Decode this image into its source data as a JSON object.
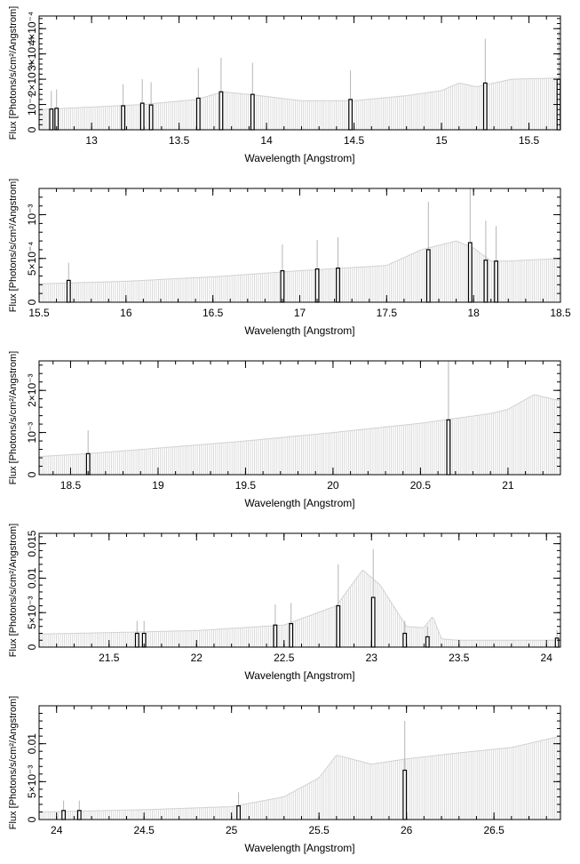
{
  "figure": {
    "colors": {
      "axis": "#000000",
      "continuum": "#d2d2d2",
      "line_marker": "#000000",
      "error_bar": "#b5b5b5",
      "background": "#ffffff"
    }
  },
  "chart_data": [
    {
      "type": "bar",
      "xlabel": "Wavelength [Angstrom]",
      "ylabel": "Flux [Photons/s/cm²/Angstrom]",
      "xlim": [
        12.7,
        15.68
      ],
      "ylim": [
        0,
        0.00045
      ],
      "xticks": [
        13,
        13.5,
        14,
        14.5,
        15,
        15.5
      ],
      "xtick_labels": [
        "13",
        "13.5",
        "14",
        "14.5",
        "15",
        "15.5"
      ],
      "yticks": [
        0,
        0.0001,
        0.0002,
        0.0003,
        0.0004
      ],
      "ytick_labels": [
        "0",
        "10⁻⁴",
        "2×10⁻⁴",
        "3×10⁻⁴",
        "4×10⁻⁴"
      ],
      "continuum": {
        "x": [
          12.7,
          13.0,
          13.3,
          13.6,
          13.75,
          13.9,
          14.2,
          14.5,
          14.8,
          15.0,
          15.1,
          15.2,
          15.4,
          15.68
        ],
        "y": [
          8e-05,
          9e-05,
          0.0001,
          0.00012,
          0.00015,
          0.00014,
          0.000115,
          0.000115,
          0.000135,
          0.000155,
          0.000185,
          0.00017,
          0.0002,
          0.000205
        ]
      },
      "lines": [
        {
          "x": 12.77,
          "y": 8.2e-05,
          "err": 7.2e-05
        },
        {
          "x": 12.8,
          "y": 8.5e-05,
          "err": 7.5e-05
        },
        {
          "x": 13.18,
          "y": 9.5e-05,
          "err": 8.5e-05
        },
        {
          "x": 13.29,
          "y": 0.000105,
          "err": 9.5e-05
        },
        {
          "x": 13.34,
          "y": 9.8e-05,
          "err": 9e-05
        },
        {
          "x": 13.61,
          "y": 0.000125,
          "err": 0.00012
        },
        {
          "x": 13.74,
          "y": 0.00015,
          "err": 0.000135
        },
        {
          "x": 13.92,
          "y": 0.00014,
          "err": 0.000125
        },
        {
          "x": 14.48,
          "y": 0.00012,
          "err": 0.000115
        },
        {
          "x": 15.25,
          "y": 0.000185,
          "err": 0.000175
        },
        {
          "x": 15.67,
          "y": 0.0002,
          "err": 0.00019
        }
      ]
    },
    {
      "type": "bar",
      "xlabel": "Wavelength [Angstrom]",
      "ylabel": "Flux [Photons/s/cm²/Angstrom]",
      "xlim": [
        15.5,
        18.5
      ],
      "ylim": [
        0,
        0.0013
      ],
      "xticks": [
        15.5,
        16,
        16.5,
        17,
        17.5,
        18,
        18.5
      ],
      "xtick_labels": [
        "15.5",
        "16",
        "16.5",
        "17",
        "17.5",
        "18",
        "18.5"
      ],
      "yticks": [
        0,
        0.0005,
        0.001
      ],
      "ytick_labels": [
        "0",
        "5×10⁻⁴",
        "10⁻³"
      ],
      "continuum": {
        "x": [
          15.5,
          16.0,
          16.5,
          17.0,
          17.5,
          17.7,
          17.9,
          18.0,
          18.1,
          18.2,
          18.5
        ],
        "y": [
          0.00021,
          0.00024,
          0.00029,
          0.00036,
          0.00042,
          0.0006,
          0.0007,
          0.00062,
          0.00047,
          0.00047,
          0.0005
        ]
      },
      "lines": [
        {
          "x": 15.67,
          "y": 0.00025,
          "err": 0.0002
        },
        {
          "x": 16.9,
          "y": 0.00036,
          "err": 0.0003
        },
        {
          "x": 17.1,
          "y": 0.00038,
          "err": 0.00033
        },
        {
          "x": 17.22,
          "y": 0.00039,
          "err": 0.00035
        },
        {
          "x": 17.74,
          "y": 0.0006,
          "err": 0.00055
        },
        {
          "x": 17.98,
          "y": 0.00068,
          "err": 0.00065
        },
        {
          "x": 18.07,
          "y": 0.00048,
          "err": 0.00045
        },
        {
          "x": 18.13,
          "y": 0.00047,
          "err": 0.0004
        }
      ]
    },
    {
      "type": "bar",
      "xlabel": "Wavelength [Angstrom]",
      "ylabel": "Flux [Photons/s/cm²/Angstrom]",
      "xlim": [
        18.32,
        21.3
      ],
      "ylim": [
        0,
        0.0027
      ],
      "xticks": [
        18.5,
        19,
        19.5,
        20,
        20.5,
        21
      ],
      "xtick_labels": [
        "18.5",
        "19",
        "19.5",
        "20",
        "20.5",
        "21"
      ],
      "yticks": [
        0,
        0.001,
        0.002
      ],
      "ytick_labels": [
        "0",
        "10⁻³",
        "2×10⁻³"
      ],
      "continuum": {
        "x": [
          18.32,
          18.6,
          19.0,
          19.5,
          20.0,
          20.5,
          20.9,
          21.0,
          21.15,
          21.3
        ],
        "y": [
          0.00043,
          0.0005,
          0.00063,
          0.0008,
          0.001,
          0.00122,
          0.00145,
          0.00155,
          0.0019,
          0.00175
        ]
      },
      "lines": [
        {
          "x": 18.6,
          "y": 0.0005,
          "err": 0.00055
        },
        {
          "x": 20.66,
          "y": 0.0013,
          "err": 0.0014
        }
      ]
    },
    {
      "type": "bar",
      "xlabel": "Wavelength [Angstrom]",
      "ylabel": "Flux [Photons/s/cm²/Angstrom]",
      "xlim": [
        21.1,
        24.08
      ],
      "ylim": [
        0,
        0.0165
      ],
      "xticks": [
        21.5,
        22,
        22.5,
        23,
        23.5,
        24
      ],
      "xtick_labels": [
        "21.5",
        "22",
        "22.5",
        "23",
        "23.5",
        "24"
      ],
      "yticks": [
        0,
        0.005,
        0.01,
        0.015
      ],
      "ytick_labels": [
        "0",
        "5×10⁻³",
        "0.01",
        "0.015"
      ],
      "continuum": {
        "x": [
          21.1,
          21.5,
          22.0,
          22.5,
          22.8,
          22.9,
          22.95,
          23.05,
          23.2,
          23.3,
          23.35,
          23.4,
          23.5,
          24.08
        ],
        "y": [
          0.0019,
          0.0021,
          0.0024,
          0.0032,
          0.006,
          0.0095,
          0.0112,
          0.009,
          0.003,
          0.0028,
          0.0045,
          0.0012,
          0.001,
          0.001
        ]
      },
      "lines": [
        {
          "x": 21.66,
          "y": 0.002,
          "err": 0.0018
        },
        {
          "x": 21.7,
          "y": 0.002,
          "err": 0.0018
        },
        {
          "x": 22.45,
          "y": 0.0032,
          "err": 0.003
        },
        {
          "x": 22.54,
          "y": 0.0034,
          "err": 0.003
        },
        {
          "x": 22.81,
          "y": 0.006,
          "err": 0.006
        },
        {
          "x": 23.01,
          "y": 0.0072,
          "err": 0.007
        },
        {
          "x": 23.19,
          "y": 0.002,
          "err": 0.0018
        },
        {
          "x": 23.32,
          "y": 0.0015,
          "err": 0.0015
        },
        {
          "x": 24.06,
          "y": 0.0013,
          "err": 0.0012
        }
      ]
    },
    {
      "type": "bar",
      "xlabel": "Wavelength [Angstrom]",
      "ylabel": "Flux [Photons/s/cm²/Angstrom]",
      "xlim": [
        23.9,
        26.88
      ],
      "ylim": [
        0,
        0.015
      ],
      "xticks": [
        24,
        24.5,
        25,
        25.5,
        26,
        26.5
      ],
      "xtick_labels": [
        "24",
        "24.5",
        "25",
        "25.5",
        "26",
        "26.5"
      ],
      "yticks": [
        0,
        0.005,
        0.01
      ],
      "ytick_labels": [
        "0",
        "5×10⁻³",
        "0.01"
      ],
      "continuum": {
        "x": [
          23.9,
          24.5,
          25.0,
          25.3,
          25.5,
          25.6,
          25.8,
          26.0,
          26.3,
          26.6,
          26.88
        ],
        "y": [
          0.001,
          0.0013,
          0.0017,
          0.003,
          0.0055,
          0.0085,
          0.0073,
          0.008,
          0.0088,
          0.0095,
          0.011
        ]
      },
      "lines": [
        {
          "x": 24.04,
          "y": 0.0012,
          "err": 0.0013
        },
        {
          "x": 24.13,
          "y": 0.0012,
          "err": 0.0013
        },
        {
          "x": 25.04,
          "y": 0.0018,
          "err": 0.0018
        },
        {
          "x": 25.99,
          "y": 0.0065,
          "err": 0.0065
        }
      ]
    }
  ]
}
